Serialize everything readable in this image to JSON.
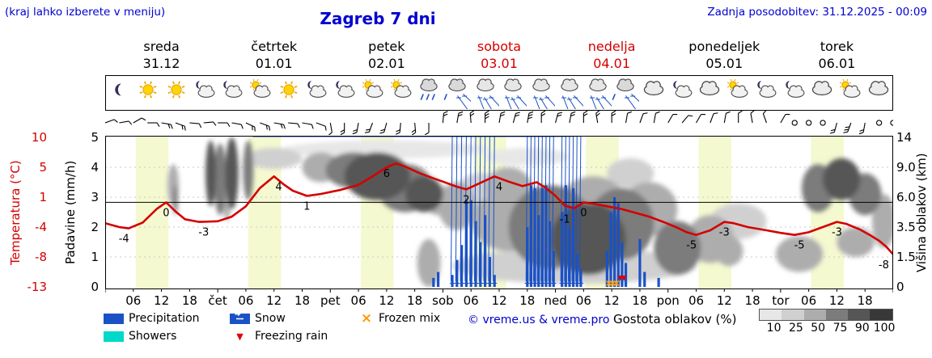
{
  "header": {
    "hint": "(kraj lahko izberete v meniju)",
    "title": "Zagreb 7 dni",
    "updated": "Zadnja posodobitev: 31.12.2025 - 00:09"
  },
  "colors": {
    "blue_text": "#0000d0",
    "red": "#d40000",
    "precip_blue": "#1a52c6",
    "showers_cyan": "#00d8c8",
    "frozen_orange": "#ff9900",
    "freezing_red": "#e00000",
    "day_band": "#f5f9d0",
    "density_shades": {
      "10": "#e7e7e7",
      "25": "#d0d0d0",
      "50": "#adadad",
      "75": "#7c7c7c",
      "90": "#565656",
      "100": "#383838"
    }
  },
  "days": [
    {
      "name": "sreda",
      "date": "31.12",
      "highlight": false
    },
    {
      "name": "četrtek",
      "date": "01.01",
      "highlight": false
    },
    {
      "name": "petek",
      "date": "02.01",
      "highlight": false
    },
    {
      "name": "sobota",
      "date": "03.01",
      "highlight": true
    },
    {
      "name": "nedelja",
      "date": "04.01",
      "highlight": true
    },
    {
      "name": "ponedeljek",
      "date": "05.01",
      "highlight": false
    },
    {
      "name": "torek",
      "date": "06.01",
      "highlight": false
    }
  ],
  "axes": {
    "temp_label": "Temperatura (°C)",
    "temp_ticks": [
      "10",
      "5",
      "1",
      "-4",
      "-8",
      "-13"
    ],
    "precip_label": "Padavine (mm/h)",
    "precip_ticks": [
      "5",
      "4",
      "3",
      "2",
      "1",
      "0"
    ],
    "cloud_label": "Višina oblakov (km)",
    "cloud_ticks": [
      "14",
      "9.0",
      "6.0",
      "3.5",
      "1.5",
      "0"
    ],
    "hour_labels": [
      "06",
      "12",
      "18"
    ],
    "day_abbrevs": [
      "čet",
      "pet",
      "sob",
      "ned",
      "pon",
      "tor"
    ]
  },
  "legend": {
    "precipitation": "Precipitation",
    "showers": "Showers",
    "snow": "Snow",
    "freezing_rain": "Freezing rain",
    "frozen_mix": "Frozen mix",
    "copyright": "© vreme.us & vreme.pro",
    "cloud_density_label": "Gostota oblakov (%)",
    "density_ticks": [
      "10",
      "25",
      "50",
      "75",
      "90",
      "100"
    ]
  },
  "icons": [
    "moon",
    "sun",
    "sun",
    "moon-cloud",
    "moon-cloud",
    "sun-cloud",
    "sun",
    "moon-cloud",
    "moon-cloud",
    "sun-cloud",
    "sun-cloud",
    "cloud-rain",
    "cloud-sleet",
    "cloud-snow",
    "cloud-snow",
    "cloud-snow",
    "cloud-snow",
    "cloud-snow",
    "cloud-sleet",
    "cloud",
    "moon-cloud",
    "cloud",
    "sun-cloud",
    "moon-cloud",
    "moon-cloud",
    "cloud",
    "sun-cloud",
    "cloud"
  ],
  "wind_barbs": [
    [
      70,
      1
    ],
    [
      80,
      1
    ],
    [
      60,
      1
    ],
    [
      90,
      1
    ],
    [
      100,
      2
    ],
    [
      110,
      2
    ],
    [
      95,
      1
    ],
    [
      85,
      1
    ],
    [
      90,
      1
    ],
    [
      100,
      1
    ],
    [
      115,
      2
    ],
    [
      110,
      2
    ],
    [
      100,
      2
    ],
    [
      95,
      1
    ],
    [
      100,
      1
    ],
    [
      110,
      1
    ],
    [
      170,
      1
    ],
    [
      180,
      2
    ],
    [
      190,
      2
    ],
    [
      200,
      2
    ],
    [
      195,
      2
    ],
    [
      185,
      2
    ],
    [
      175,
      2
    ],
    [
      180,
      1
    ],
    [
      5,
      2
    ],
    [
      10,
      2
    ],
    [
      355,
      2
    ],
    [
      0,
      3
    ],
    [
      10,
      2
    ],
    [
      15,
      2
    ],
    [
      10,
      3
    ],
    [
      0,
      2
    ],
    [
      15,
      2
    ],
    [
      10,
      2
    ],
    [
      0,
      2
    ],
    [
      350,
      2
    ],
    [
      0,
      2
    ],
    [
      10,
      1
    ],
    [
      20,
      1
    ],
    [
      10,
      1
    ],
    [
      30,
      1
    ],
    [
      40,
      1
    ],
    [
      30,
      1
    ],
    [
      20,
      1
    ],
    [
      10,
      1
    ],
    [
      0,
      1
    ],
    [
      350,
      1
    ],
    [
      340,
      1
    ],
    [
      30,
      1
    ],
    [
      0,
      0
    ],
    [
      0,
      0
    ],
    [
      0,
      0
    ],
    [
      195,
      2
    ],
    [
      200,
      3
    ],
    [
      190,
      2
    ],
    [
      0,
      0
    ],
    [
      0,
      0
    ]
  ],
  "chart_data": {
    "type": "line",
    "title": "Zagreb 7 dni",
    "x_unit": "hours from sreda 31.12 00:00",
    "x_range": [
      0,
      168
    ],
    "day_band_hours": [
      6.5,
      13.5
    ],
    "temperature_C": {
      "color": "#d40000",
      "axis_ticks": [
        10,
        5,
        1,
        -4,
        -8,
        -13
      ],
      "points": [
        [
          0,
          -3.2
        ],
        [
          3,
          -3.8
        ],
        [
          5,
          -4
        ],
        [
          8,
          -3.1
        ],
        [
          11,
          -1
        ],
        [
          13,
          0
        ],
        [
          15,
          -1.4
        ],
        [
          17,
          -2.6
        ],
        [
          20,
          -3
        ],
        [
          24,
          -2.9
        ],
        [
          27,
          -2.2
        ],
        [
          30,
          -0.6
        ],
        [
          33,
          2.2
        ],
        [
          36,
          4
        ],
        [
          38,
          2.8
        ],
        [
          40,
          1.8
        ],
        [
          43,
          1
        ],
        [
          46,
          1.3
        ],
        [
          50,
          1.9
        ],
        [
          54,
          2.7
        ],
        [
          57,
          4
        ],
        [
          60,
          5.4
        ],
        [
          62,
          6
        ],
        [
          64,
          5.5
        ],
        [
          67,
          4.5
        ],
        [
          70,
          3.7
        ],
        [
          72,
          3.2
        ],
        [
          75,
          2.4
        ],
        [
          77,
          2
        ],
        [
          80,
          3
        ],
        [
          83,
          4
        ],
        [
          86,
          3.2
        ],
        [
          89,
          2.5
        ],
        [
          92,
          3.1
        ],
        [
          94,
          2.2
        ],
        [
          96,
          1
        ],
        [
          98,
          -0.5
        ],
        [
          100,
          -0.9
        ],
        [
          102,
          0
        ],
        [
          104,
          -0.2
        ],
        [
          107,
          -0.6
        ],
        [
          110,
          -1
        ],
        [
          113,
          -1.6
        ],
        [
          116,
          -2.2
        ],
        [
          119,
          -3
        ],
        [
          122,
          -3.9
        ],
        [
          124,
          -4.6
        ],
        [
          126,
          -5
        ],
        [
          129,
          -4.3
        ],
        [
          132,
          -3
        ],
        [
          134,
          -3.2
        ],
        [
          137,
          -3.8
        ],
        [
          141,
          -4.3
        ],
        [
          144,
          -4.7
        ],
        [
          147,
          -5
        ],
        [
          150,
          -4.6
        ],
        [
          153,
          -3.8
        ],
        [
          156,
          -3
        ],
        [
          158,
          -3.3
        ],
        [
          161,
          -4.2
        ],
        [
          163,
          -5
        ],
        [
          165,
          -5.9
        ],
        [
          166.5,
          -6.8
        ],
        [
          168,
          -8
        ]
      ],
      "point_labels": [
        [
          4,
          -4
        ],
        [
          13,
          0
        ],
        [
          21,
          -3
        ],
        [
          37,
          4
        ],
        [
          43,
          1
        ],
        [
          60,
          6
        ],
        [
          77,
          2
        ],
        [
          84,
          4
        ],
        [
          98,
          -1
        ],
        [
          102,
          0
        ],
        [
          125,
          -5
        ],
        [
          132,
          -3
        ],
        [
          148,
          -5
        ],
        [
          156,
          -3
        ],
        [
          166,
          -8
        ]
      ]
    },
    "precipitation_mm_h": {
      "color": "#1a52c6",
      "ylim": [
        0,
        5
      ],
      "bar_width_h": 0.55,
      "bars": [
        [
          70,
          0.3,
          "rain"
        ],
        [
          71,
          0.5,
          "rain"
        ],
        [
          74,
          0.4,
          "snow"
        ],
        [
          75,
          0.9,
          "snow"
        ],
        [
          76,
          1.4,
          "snow"
        ],
        [
          77,
          2.9,
          "snow"
        ],
        [
          78,
          2.9,
          "snow"
        ],
        [
          79,
          2.2,
          "snow"
        ],
        [
          80,
          1.5,
          "snow"
        ],
        [
          81,
          2.4,
          "snow"
        ],
        [
          82,
          1.0,
          "snow"
        ],
        [
          83,
          0.4,
          "snow"
        ],
        [
          90,
          2.0,
          "snow"
        ],
        [
          90.8,
          3.4,
          "snow"
        ],
        [
          91.6,
          3.3,
          "snow"
        ],
        [
          92.4,
          2.4,
          "snow"
        ],
        [
          93.2,
          3.3,
          "snow"
        ],
        [
          94,
          3.4,
          "snow"
        ],
        [
          94.8,
          2.2,
          "snow"
        ],
        [
          95.6,
          1.2,
          "snow"
        ],
        [
          97.4,
          2.5,
          "snow"
        ],
        [
          98.2,
          3.4,
          "snow"
        ],
        [
          99,
          2.0,
          "snow"
        ],
        [
          99.8,
          3.3,
          "snow"
        ],
        [
          100.6,
          1.1,
          "snow"
        ],
        [
          101.4,
          0.6,
          "snow"
        ],
        [
          107,
          1.2,
          "rain"
        ],
        [
          107.8,
          2.5,
          "rain"
        ],
        [
          108.6,
          3.0,
          "rain"
        ],
        [
          109.4,
          2.8,
          "rain"
        ],
        [
          110.2,
          1.5,
          "rain"
        ],
        [
          111,
          0.8,
          "rain"
        ],
        [
          114,
          1.6,
          "rain"
        ],
        [
          115,
          0.5,
          "rain"
        ],
        [
          118,
          0.3,
          "rain"
        ]
      ]
    },
    "frozen_mix_hours": [
      107.4,
      108.2,
      109
    ],
    "freezing_rain_hours": [
      109.8,
      110.6
    ],
    "clouds": {
      "altitude_ticks_km": [
        0,
        1.5,
        3.5,
        6.0,
        9.0,
        14
      ],
      "density_levels_pct": [
        10,
        25,
        50,
        75,
        90,
        100
      ],
      "blobs_cx_cy_rx_ry_density": [
        [
          60,
          4.6,
          22,
          0.3,
          10
        ],
        [
          90,
          4.35,
          9,
          0.3,
          10
        ],
        [
          14.5,
          3.4,
          1.2,
          0.7,
          50
        ],
        [
          15,
          2.9,
          0.5,
          0.5,
          75
        ],
        [
          22.5,
          3.8,
          1.1,
          1.1,
          90
        ],
        [
          24.5,
          3.6,
          1.3,
          1.2,
          75
        ],
        [
          27,
          3.8,
          1.4,
          1.2,
          90
        ],
        [
          30.5,
          3.9,
          1.1,
          1.0,
          75
        ],
        [
          26,
          2.7,
          0.7,
          0.5,
          50
        ],
        [
          36,
          4.3,
          6,
          0.35,
          25
        ],
        [
          46,
          4.0,
          4,
          0.5,
          50
        ],
        [
          53,
          3.9,
          6,
          0.6,
          75
        ],
        [
          58,
          3.7,
          7,
          0.8,
          90
        ],
        [
          64,
          3.3,
          6,
          0.8,
          75
        ],
        [
          68,
          3.1,
          4,
          0.6,
          90
        ],
        [
          71,
          2.9,
          3,
          0.5,
          50
        ],
        [
          69,
          0.8,
          2.5,
          0.8,
          50
        ],
        [
          75,
          2.7,
          4,
          0.8,
          50
        ],
        [
          80,
          3.2,
          5,
          0.6,
          25
        ],
        [
          86,
          3.3,
          5,
          0.7,
          50
        ],
        [
          100,
          0.7,
          26,
          0.6,
          25
        ],
        [
          86,
          2.2,
          8,
          1.0,
          50
        ],
        [
          95,
          2.0,
          9,
          1.4,
          75
        ],
        [
          103,
          1.6,
          8,
          1.2,
          90
        ],
        [
          104,
          2.8,
          7,
          0.9,
          50
        ],
        [
          110,
          2.1,
          7,
          1.2,
          75
        ],
        [
          116,
          2.6,
          6,
          0.9,
          50
        ],
        [
          112,
          3.8,
          5,
          0.5,
          25
        ],
        [
          122,
          1.3,
          5,
          0.9,
          75
        ],
        [
          129,
          1.6,
          5,
          0.8,
          50
        ],
        [
          135,
          2.2,
          6,
          0.6,
          25
        ],
        [
          133,
          1.2,
          3,
          0.5,
          50
        ],
        [
          148,
          1.1,
          5,
          0.6,
          50
        ],
        [
          152,
          3.3,
          3.5,
          0.8,
          75
        ],
        [
          157,
          3.6,
          4,
          0.7,
          90
        ],
        [
          162,
          3.1,
          3.5,
          0.7,
          75
        ],
        [
          160,
          1.5,
          4,
          0.5,
          50
        ],
        [
          166,
          2.2,
          2.5,
          0.9,
          50
        ]
      ]
    }
  }
}
